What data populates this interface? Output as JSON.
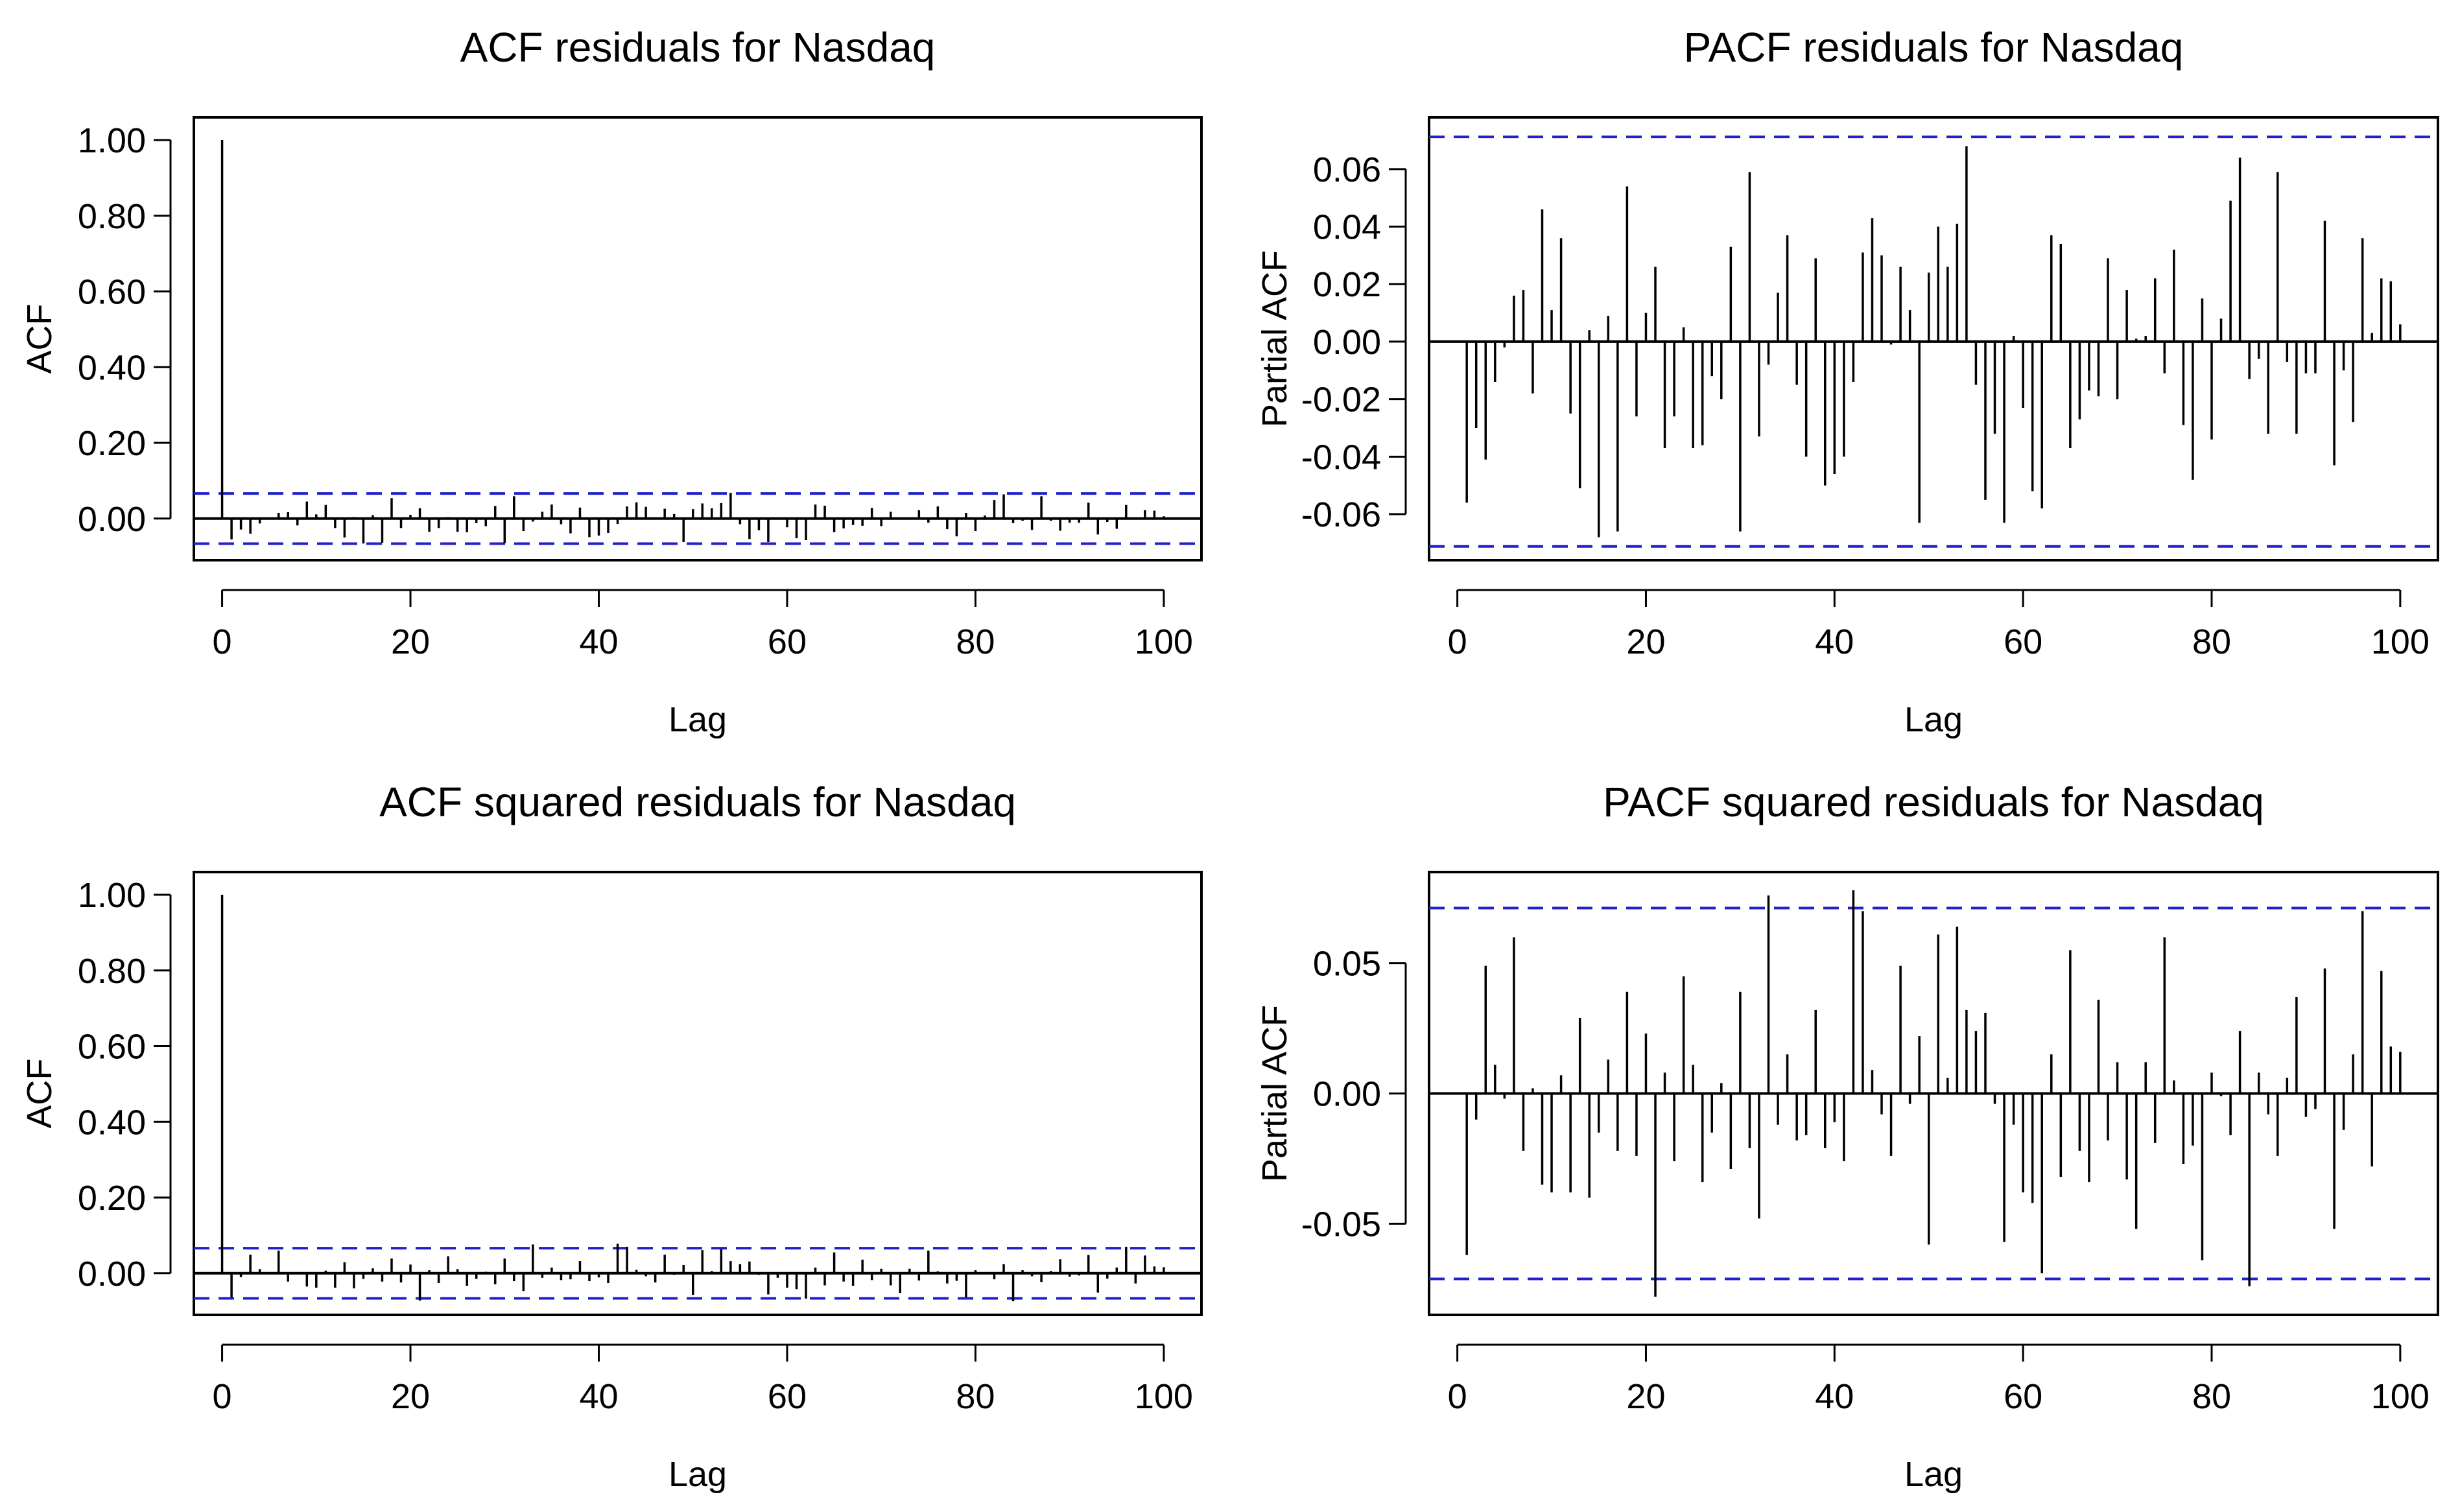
{
  "chart_data": [
    {
      "type": "bar",
      "kind": "acf",
      "title": "ACF residuals for Nasdaq",
      "xlabel": "Lag",
      "ylabel": "ACF",
      "xlim": [
        -3,
        104
      ],
      "ylim": [
        -0.11,
        1.06
      ],
      "xticks": [
        0,
        20,
        40,
        60,
        80,
        100
      ],
      "yticks": [
        0,
        0.2,
        0.4,
        0.6,
        0.8,
        1.0
      ],
      "ytick_labels": [
        "0.00",
        "0.20",
        "0.40",
        "0.60",
        "0.80",
        "1.00"
      ],
      "ci": 0.0663,
      "x": [
        0,
        1,
        2,
        3,
        4,
        5,
        6,
        7,
        8,
        9,
        10,
        11,
        12,
        13,
        14,
        15,
        16,
        17,
        18,
        19,
        20,
        21,
        22,
        23,
        24,
        25,
        26,
        27,
        28,
        29,
        30,
        31,
        32,
        33,
        34,
        35,
        36,
        37,
        38,
        39,
        40,
        41,
        42,
        43,
        44,
        45,
        46,
        47,
        48,
        49,
        50,
        51,
        52,
        53,
        54,
        55,
        56,
        57,
        58,
        59,
        60,
        61,
        62,
        63,
        64,
        65,
        66,
        67,
        68,
        69,
        70,
        71,
        72,
        73,
        74,
        75,
        76,
        77,
        78,
        79,
        80,
        81,
        82,
        83,
        84,
        85,
        86,
        87,
        88,
        89,
        90,
        91,
        92,
        93,
        94,
        95,
        96,
        97,
        98,
        99,
        100
      ],
      "values": [
        1.0,
        -0.055,
        -0.029,
        -0.04,
        -0.013,
        -0.002,
        0.015,
        0.017,
        -0.018,
        0.045,
        0.011,
        0.036,
        -0.025,
        -0.05,
        0.004,
        -0.066,
        0.009,
        -0.064,
        0.054,
        -0.025,
        0.01,
        0.027,
        -0.035,
        -0.025,
        0.004,
        -0.035,
        -0.036,
        -0.012,
        -0.02,
        0.033,
        -0.065,
        0.059,
        -0.033,
        -0.008,
        0.018,
        0.037,
        -0.015,
        -0.039,
        0.029,
        -0.049,
        -0.045,
        -0.038,
        -0.014,
        0.032,
        0.043,
        0.031,
        -0.001,
        0.026,
        0.012,
        -0.062,
        0.025,
        0.04,
        0.027,
        0.041,
        0.068,
        -0.015,
        -0.054,
        -0.031,
        -0.062,
        0.002,
        -0.023,
        -0.052,
        -0.057,
        0.037,
        0.034,
        -0.036,
        -0.026,
        -0.017,
        -0.019,
        0.028,
        -0.02,
        0.018,
        0.001,
        0.002,
        0.022,
        -0.011,
        0.032,
        -0.028,
        -0.047,
        0.015,
        -0.033,
        0.008,
        0.049,
        0.064,
        -0.012,
        -0.006,
        -0.03,
        0.059,
        -0.006,
        -0.032,
        -0.011,
        -0.011,
        0.042,
        -0.042,
        -0.009,
        -0.027,
        0.036,
        0.003,
        0.022,
        0.021,
        0.006
      ]
    },
    {
      "type": "bar",
      "kind": "pacf",
      "title": "PACF residuals for Nasdaq",
      "xlabel": "Lag",
      "ylabel": "Partial ACF",
      "xlim": [
        -3,
        104
      ],
      "ylim": [
        -0.076,
        0.078
      ],
      "xticks": [
        0,
        20,
        40,
        60,
        80,
        100
      ],
      "yticks": [
        -0.06,
        -0.04,
        -0.02,
        0.0,
        0.02,
        0.04,
        0.06
      ],
      "ytick_labels": [
        "-0.06",
        "-0.04",
        "-0.02",
        "0.00",
        "0.02",
        "0.04",
        "0.06"
      ],
      "ci": 0.0712,
      "x": [
        1,
        2,
        3,
        4,
        5,
        6,
        7,
        8,
        9,
        10,
        11,
        12,
        13,
        14,
        15,
        16,
        17,
        18,
        19,
        20,
        21,
        22,
        23,
        24,
        25,
        26,
        27,
        28,
        29,
        30,
        31,
        32,
        33,
        34,
        35,
        36,
        37,
        38,
        39,
        40,
        41,
        42,
        43,
        44,
        45,
        46,
        47,
        48,
        49,
        50,
        51,
        52,
        53,
        54,
        55,
        56,
        57,
        58,
        59,
        60,
        61,
        62,
        63,
        64,
        65,
        66,
        67,
        68,
        69,
        70,
        71,
        72,
        73,
        74,
        75,
        76,
        77,
        78,
        79,
        80,
        81,
        82,
        83,
        84,
        85,
        86,
        87,
        88,
        89,
        90,
        91,
        92,
        93,
        94,
        95,
        96,
        97,
        98,
        99,
        100
      ],
      "values": [
        -0.056,
        -0.03,
        -0.041,
        -0.014,
        -0.002,
        0.016,
        0.018,
        -0.018,
        0.046,
        0.011,
        0.036,
        -0.025,
        -0.051,
        0.004,
        -0.068,
        0.009,
        -0.066,
        0.054,
        -0.026,
        0.01,
        0.026,
        -0.037,
        -0.026,
        0.005,
        -0.037,
        -0.036,
        -0.012,
        -0.02,
        0.033,
        -0.066,
        0.059,
        -0.033,
        -0.008,
        0.017,
        0.037,
        -0.015,
        -0.04,
        0.029,
        -0.05,
        -0.046,
        -0.04,
        -0.014,
        0.031,
        0.043,
        0.03,
        -0.001,
        0.026,
        0.011,
        -0.063,
        0.024,
        0.04,
        0.026,
        0.041,
        0.068,
        -0.015,
        -0.055,
        -0.032,
        -0.063,
        0.002,
        -0.023,
        -0.052,
        -0.058,
        0.037,
        0.034,
        -0.037,
        -0.027,
        -0.017,
        -0.019,
        0.029,
        -0.02,
        0.018,
        0.001,
        0.002,
        0.022,
        -0.011,
        0.032,
        -0.029,
        -0.048,
        0.015,
        -0.034,
        0.008,
        0.049,
        0.064,
        -0.013,
        -0.006,
        -0.032,
        0.059,
        -0.007,
        -0.032,
        -0.011,
        -0.011,
        0.042,
        -0.043,
        -0.01,
        -0.028,
        0.036,
        0.003,
        0.022,
        0.021,
        0.006
      ]
    },
    {
      "type": "bar",
      "kind": "acf",
      "title": "ACF squared residuals for Nasdaq",
      "xlabel": "Lag",
      "ylabel": "ACF",
      "xlim": [
        -3,
        104
      ],
      "ylim": [
        -0.11,
        1.06
      ],
      "xticks": [
        0,
        20,
        40,
        60,
        80,
        100
      ],
      "yticks": [
        0,
        0.2,
        0.4,
        0.6,
        0.8,
        1.0
      ],
      "ytick_labels": [
        "0.00",
        "0.20",
        "0.40",
        "0.60",
        "0.80",
        "1.00"
      ],
      "ci": 0.0663,
      "x": [
        0,
        1,
        2,
        3,
        4,
        5,
        6,
        7,
        8,
        9,
        10,
        11,
        12,
        13,
        14,
        15,
        16,
        17,
        18,
        19,
        20,
        21,
        22,
        23,
        24,
        25,
        26,
        27,
        28,
        29,
        30,
        31,
        32,
        33,
        34,
        35,
        36,
        37,
        38,
        39,
        40,
        41,
        42,
        43,
        44,
        45,
        46,
        47,
        48,
        49,
        50,
        51,
        52,
        53,
        54,
        55,
        56,
        57,
        58,
        59,
        60,
        61,
        62,
        63,
        64,
        65,
        66,
        67,
        68,
        69,
        70,
        71,
        72,
        73,
        74,
        75,
        76,
        77,
        78,
        79,
        80,
        81,
        82,
        83,
        84,
        85,
        86,
        87,
        88,
        89,
        90,
        91,
        92,
        93,
        94,
        95,
        96,
        97,
        98,
        99,
        100
      ],
      "values": [
        1.0,
        -0.063,
        -0.01,
        0.049,
        0.011,
        -0.002,
        0.06,
        -0.022,
        0.002,
        -0.035,
        -0.038,
        0.007,
        -0.038,
        0.029,
        -0.04,
        -0.015,
        0.013,
        -0.022,
        0.039,
        -0.024,
        0.023,
        -0.072,
        0.008,
        -0.026,
        0.045,
        0.011,
        -0.033,
        -0.015,
        0.004,
        -0.029,
        0.039,
        -0.021,
        -0.047,
        0.076,
        -0.012,
        0.015,
        -0.018,
        -0.016,
        0.032,
        -0.021,
        -0.011,
        -0.026,
        0.078,
        0.07,
        0.009,
        -0.008,
        -0.024,
        0.049,
        -0.004,
        0.022,
        -0.057,
        0.061,
        0.006,
        0.064,
        0.032,
        0.024,
        0.031,
        -0.004,
        -0.056,
        -0.012,
        -0.038,
        -0.042,
        -0.067,
        0.015,
        -0.032,
        0.055,
        -0.022,
        -0.033,
        0.036,
        -0.018,
        0.012,
        -0.032,
        -0.052,
        0.012,
        -0.019,
        0.06,
        0.005,
        -0.027,
        -0.02,
        -0.063,
        0.008,
        -0.001,
        -0.016,
        0.024,
        -0.074,
        0.008,
        -0.008,
        -0.023,
        0.006,
        0.037,
        -0.009,
        -0.006,
        0.048,
        -0.051,
        -0.014,
        0.015,
        0.07,
        -0.027,
        0.047,
        0.018,
        0.016
      ]
    },
    {
      "type": "bar",
      "kind": "pacf",
      "title": "PACF squared residuals for Nasdaq",
      "xlabel": "Lag",
      "ylabel": "Partial ACF",
      "xlim": [
        -3,
        104
      ],
      "ylim": [
        -0.085,
        0.085
      ],
      "xticks": [
        0,
        20,
        40,
        60,
        80,
        100
      ],
      "yticks": [
        -0.05,
        0.0,
        0.05
      ],
      "ytick_labels": [
        "-0.05",
        "0.00",
        "0.05"
      ],
      "ci": 0.0712,
      "x": [
        1,
        2,
        3,
        4,
        5,
        6,
        7,
        8,
        9,
        10,
        11,
        12,
        13,
        14,
        15,
        16,
        17,
        18,
        19,
        20,
        21,
        22,
        23,
        24,
        25,
        26,
        27,
        28,
        29,
        30,
        31,
        32,
        33,
        34,
        35,
        36,
        37,
        38,
        39,
        40,
        41,
        42,
        43,
        44,
        45,
        46,
        47,
        48,
        49,
        50,
        51,
        52,
        53,
        54,
        55,
        56,
        57,
        58,
        59,
        60,
        61,
        62,
        63,
        64,
        65,
        66,
        67,
        68,
        69,
        70,
        71,
        72,
        73,
        74,
        75,
        76,
        77,
        78,
        79,
        80,
        81,
        82,
        83,
        84,
        85,
        86,
        87,
        88,
        89,
        90,
        91,
        92,
        93,
        94,
        95,
        96,
        97,
        98,
        99,
        100
      ],
      "values": [
        -0.062,
        -0.01,
        0.049,
        0.011,
        -0.002,
        0.06,
        -0.022,
        0.002,
        -0.035,
        -0.038,
        0.007,
        -0.038,
        0.029,
        -0.04,
        -0.015,
        0.013,
        -0.022,
        0.039,
        -0.024,
        0.023,
        -0.078,
        0.008,
        -0.026,
        0.045,
        0.011,
        -0.034,
        -0.015,
        0.004,
        -0.029,
        0.039,
        -0.021,
        -0.048,
        0.076,
        -0.012,
        0.015,
        -0.018,
        -0.016,
        0.032,
        -0.021,
        -0.011,
        -0.026,
        0.078,
        0.07,
        0.009,
        -0.008,
        -0.024,
        0.049,
        -0.004,
        0.022,
        -0.058,
        0.061,
        0.006,
        0.064,
        0.032,
        0.024,
        0.031,
        -0.004,
        -0.057,
        -0.012,
        -0.038,
        -0.042,
        -0.069,
        0.015,
        -0.032,
        0.055,
        -0.022,
        -0.034,
        0.036,
        -0.018,
        0.012,
        -0.033,
        -0.052,
        0.012,
        -0.019,
        0.06,
        0.005,
        -0.027,
        -0.02,
        -0.064,
        0.008,
        -0.001,
        -0.016,
        0.024,
        -0.074,
        0.008,
        -0.008,
        -0.024,
        0.006,
        0.037,
        -0.009,
        -0.006,
        0.048,
        -0.052,
        -0.014,
        0.015,
        0.07,
        -0.028,
        0.047,
        0.018,
        0.016
      ]
    }
  ]
}
